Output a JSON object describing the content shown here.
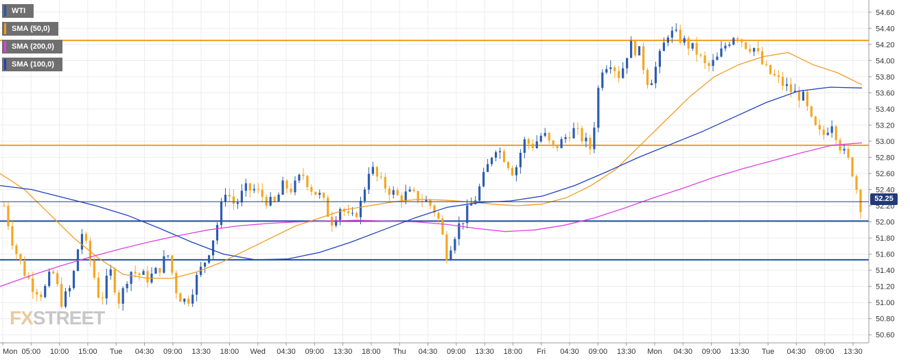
{
  "legend": [
    {
      "label": "WTI",
      "color": "#2457a8"
    },
    {
      "label": "SMA (50,0)",
      "color": "#f39c1f"
    },
    {
      "label": "SMA (200,0)",
      "color": "#e040e0"
    },
    {
      "label": "SMA (100,0)",
      "color": "#1f3fbf"
    }
  ],
  "logo": {
    "prefix": "FX",
    "rest": "STREET"
  },
  "chart_data": {
    "type": "candlestick",
    "symbol": "WTI",
    "last_price": "52.25",
    "ylim": [
      50.5,
      54.7
    ],
    "y_ticks": [
      "54.60",
      "54.40",
      "54.20",
      "54.00",
      "53.80",
      "53.60",
      "53.40",
      "53.20",
      "53.00",
      "52.80",
      "52.60",
      "52.40",
      "52.20",
      "52.00",
      "51.80",
      "51.60",
      "51.40",
      "51.20",
      "51.00",
      "50.80",
      "50.60"
    ],
    "x_ticks": [
      "Mon",
      "05:00",
      "10:00",
      "15:00",
      "Tue",
      "04:30",
      "09:00",
      "13:30",
      "18:00",
      "Wed",
      "04:30",
      "09:00",
      "13:30",
      "18:00",
      "Thu",
      "04:30",
      "09:00",
      "13:30",
      "18:00",
      "Fri",
      "04:30",
      "09:00",
      "13:30",
      "Mon",
      "04:30",
      "09:00",
      "13:30",
      "Tue",
      "04:30",
      "09:00",
      "13:30"
    ],
    "horizontal_lines": [
      {
        "value": 54.25,
        "color": "#f39c1f"
      },
      {
        "value": 52.95,
        "color": "#f39c1f"
      },
      {
        "value": 52.01,
        "color": "#1f4ea0"
      },
      {
        "value": 51.53,
        "color": "#1f4ea0"
      }
    ],
    "close_path": [
      52.2,
      51.7,
      51.4,
      51.2,
      51.1,
      51.4,
      51.0,
      51.2,
      51.9,
      51.5,
      51.0,
      51.4,
      51.0,
      51.4,
      51.35,
      51.3,
      51.4,
      51.6,
      51.1,
      51.0,
      51.3,
      51.55,
      51.9,
      52.4,
      52.2,
      52.4,
      52.4,
      52.3,
      52.2,
      52.45,
      52.4,
      52.6,
      52.4,
      52.3,
      52.0,
      52.2,
      52.0,
      52.2,
      52.7,
      52.5,
      52.4,
      52.3,
      52.35,
      52.3,
      52.25,
      52.1,
      51.6,
      51.9,
      52.1,
      52.3,
      52.6,
      52.95,
      52.8,
      52.6,
      53.0,
      52.95,
      53.1,
      52.9,
      53.0,
      53.15,
      53.05,
      52.9,
      53.9,
      54.0,
      53.8,
      54.2,
      54.1,
      53.7,
      54.0,
      54.35,
      54.3,
      54.2,
      54.1,
      53.9,
      54.0,
      54.2,
      54.35,
      54.2,
      54.15,
      53.9,
      53.8,
      53.7,
      53.6,
      53.55,
      53.2,
      53.05,
      53.25,
      52.9,
      52.7,
      52.2
    ],
    "series": [
      {
        "name": "SMA (50,0)",
        "color": "#f39c1f",
        "values": [
          52.6,
          52.4,
          52.1,
          51.8,
          51.55,
          51.35,
          51.3,
          51.3,
          51.38,
          51.5,
          51.65,
          51.8,
          51.95,
          52.05,
          52.15,
          52.2,
          52.25,
          52.28,
          52.27,
          52.25,
          52.22,
          52.2,
          52.22,
          52.3,
          52.45,
          52.65,
          52.95,
          53.25,
          53.55,
          53.8,
          53.95,
          54.05,
          54.1,
          53.95,
          53.85,
          53.7
        ]
      },
      {
        "name": "SMA (200,0)",
        "color": "#e040e0",
        "values": [
          51.2,
          51.33,
          51.45,
          51.56,
          51.66,
          51.75,
          51.83,
          51.9,
          51.95,
          51.98,
          52.0,
          52.01,
          52.02,
          52.01,
          52.0,
          51.97,
          51.92,
          51.88,
          51.9,
          51.96,
          52.05,
          52.17,
          52.3,
          52.42,
          52.55,
          52.66,
          52.76,
          52.86,
          52.95,
          52.98
        ]
      },
      {
        "name": "SMA (100,0)",
        "color": "#1f3fbf",
        "values": [
          52.45,
          52.4,
          52.3,
          52.2,
          52.08,
          51.92,
          51.75,
          51.6,
          51.53,
          51.54,
          51.62,
          51.75,
          51.9,
          52.05,
          52.18,
          52.24,
          52.26,
          52.32,
          52.45,
          52.62,
          52.8,
          52.96,
          53.12,
          53.3,
          53.48,
          53.62,
          53.67,
          53.66
        ]
      }
    ]
  }
}
